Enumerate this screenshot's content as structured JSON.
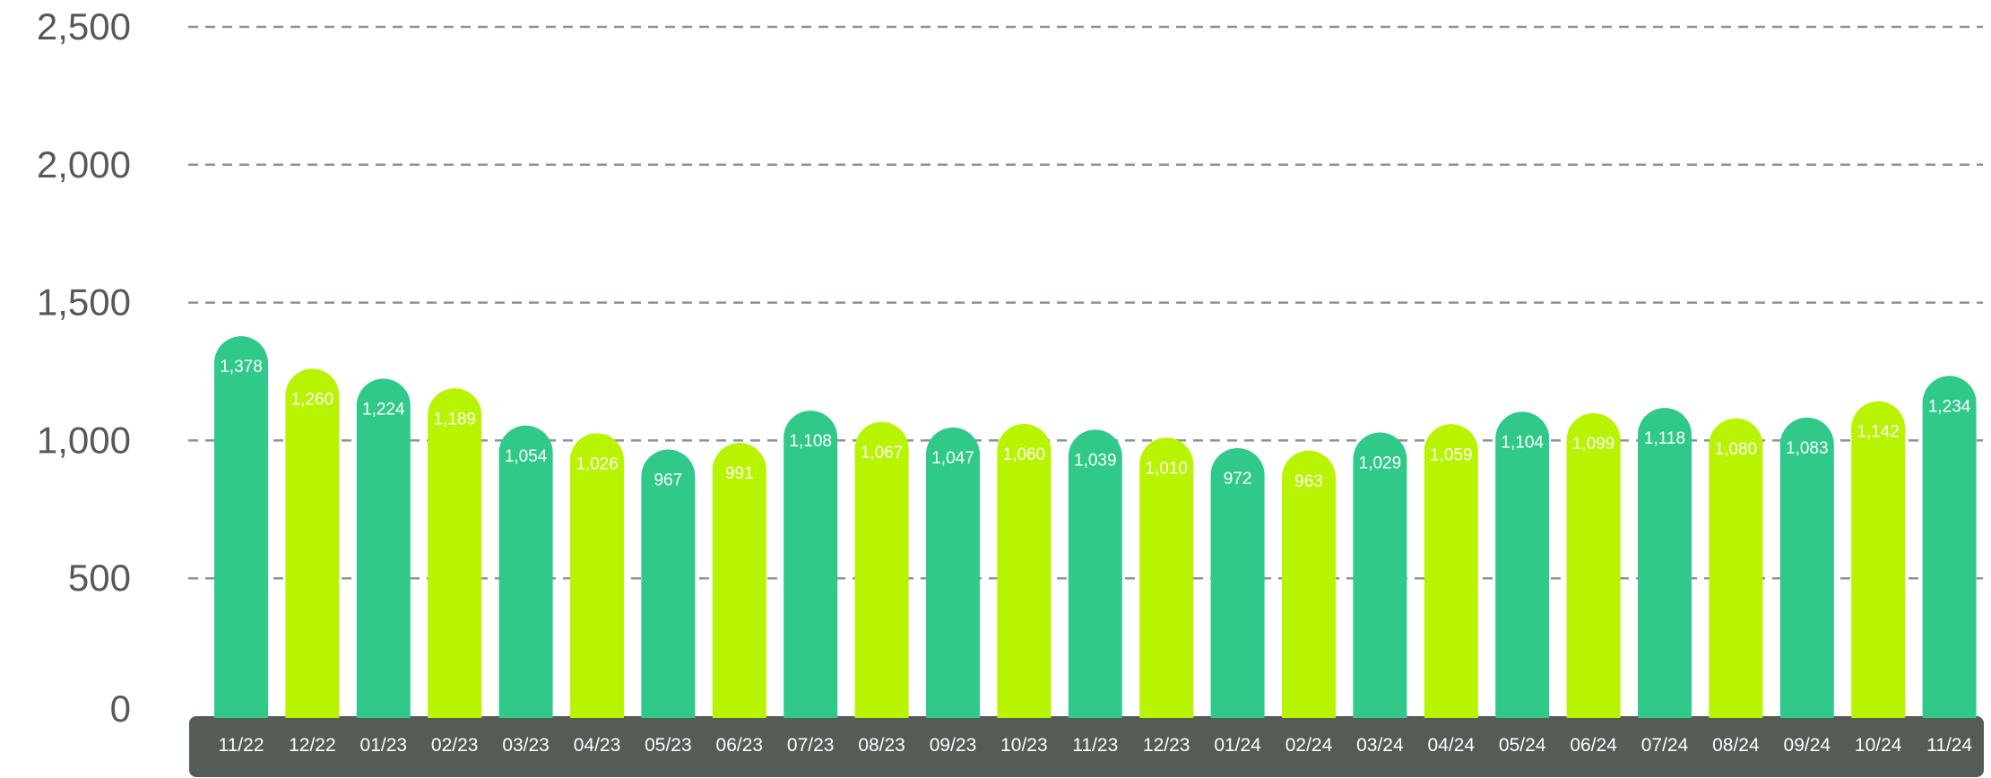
{
  "chart_data": {
    "type": "bar",
    "title": "",
    "xlabel": "",
    "ylabel": "",
    "ylim": [
      0,
      2500
    ],
    "yticks": [
      "0",
      "500",
      "1,000",
      "1,500",
      "2,000",
      "2,500"
    ],
    "grid": true,
    "legend": "none",
    "categories": [
      "11/22",
      "12/22",
      "01/23",
      "02/23",
      "03/23",
      "04/23",
      "05/23",
      "06/23",
      "07/23",
      "08/23",
      "09/23",
      "10/23",
      "11/23",
      "12/23",
      "01/24",
      "02/24",
      "03/24",
      "04/24",
      "05/24",
      "06/24",
      "07/24",
      "08/24",
      "09/24",
      "10/24",
      "11/24"
    ],
    "values": [
      1378,
      1260,
      1224,
      1189,
      1054,
      1026,
      967,
      991,
      1108,
      1067,
      1047,
      1060,
      1039,
      1010,
      972,
      963,
      1029,
      1059,
      1104,
      1099,
      1118,
      1080,
      1083,
      1142,
      1234
    ],
    "value_labels": [
      "1,378",
      "1,260",
      "1,224",
      "1,189",
      "1,054",
      "1,026",
      "967",
      "991",
      "1,108",
      "1,067",
      "1,047",
      "1,060",
      "1,039",
      "1,010",
      "972",
      "963",
      "1,029",
      "1,059",
      "1,104",
      "1,099",
      "1,118",
      "1,080",
      "1,083",
      "1,142",
      "1,234"
    ],
    "colors": {
      "bar_primary": "#30c98a",
      "bar_secondary": "#b8f400",
      "axis_band": "#555b55",
      "grid": "#8a9590",
      "tick_text": "#555a57",
      "label_text": "#ffffff"
    }
  }
}
